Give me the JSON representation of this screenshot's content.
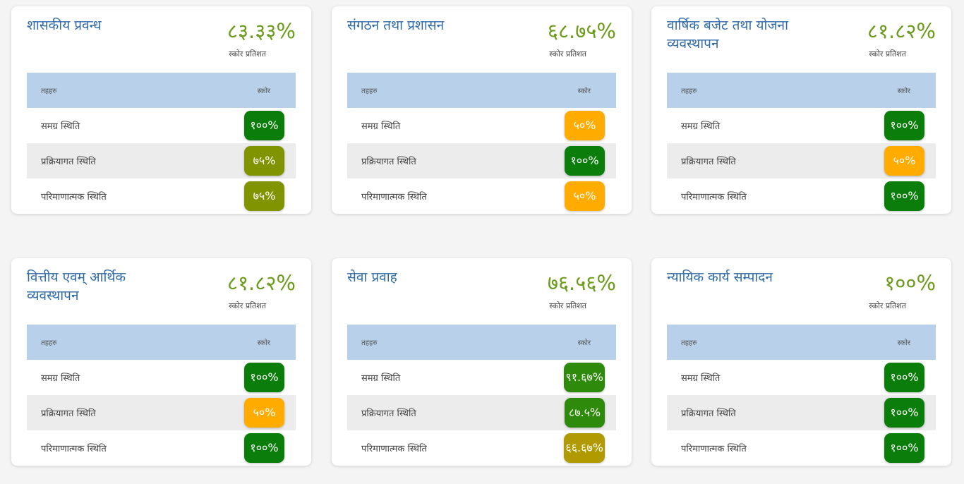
{
  "labels": {
    "subtitle": "स्कोर प्रतिशत",
    "col_tier": "तहहरु",
    "col_score": "स्कोर",
    "row1": "समग्र स्थिति",
    "row2": "प्रक्रियागत स्थिति",
    "row3": "परिमाणात्मक स्थिति"
  },
  "colors": {
    "dark_green": "#0a7d0a",
    "green": "#2e8a0a",
    "olive": "#7f9400",
    "orange": "#ffab00",
    "mustard": "#b09a00"
  },
  "cards": [
    {
      "title": "शासकीय प्रवन्ध",
      "score": "८३.३३%",
      "rows": [
        {
          "value": "१००%",
          "color": "#0a7d0a"
        },
        {
          "value": "७५%",
          "color": "#7f9400"
        },
        {
          "value": "७५%",
          "color": "#7f9400"
        }
      ]
    },
    {
      "title": "संगठन तथा प्रशासन",
      "score": "६८.७५%",
      "rows": [
        {
          "value": "५०%",
          "color": "#ffab00"
        },
        {
          "value": "१००%",
          "color": "#0a7d0a"
        },
        {
          "value": "५०%",
          "color": "#ffab00"
        }
      ]
    },
    {
      "title": "वार्षिक बजेट तथा योजना व्यवस्थापन",
      "score": "८१.८२%",
      "rows": [
        {
          "value": "१००%",
          "color": "#0a7d0a"
        },
        {
          "value": "५०%",
          "color": "#ffab00"
        },
        {
          "value": "१००%",
          "color": "#0a7d0a"
        }
      ]
    },
    {
      "title": "वित्तीय एवम् आर्थिक व्यवस्थापन",
      "score": "८१.८२%",
      "rows": [
        {
          "value": "१००%",
          "color": "#0a7d0a"
        },
        {
          "value": "५०%",
          "color": "#ffab00"
        },
        {
          "value": "१००%",
          "color": "#0a7d0a"
        }
      ]
    },
    {
      "title": "सेवा प्रवाह",
      "score": "७६.५६%",
      "rows": [
        {
          "value": "९१.६७%",
          "color": "#2e8a0a"
        },
        {
          "value": "८७.५%",
          "color": "#2e8a0a"
        },
        {
          "value": "६६.६७%",
          "color": "#b09a00"
        }
      ]
    },
    {
      "title": "न्यायिक कार्य सम्पादन",
      "score": "१००%",
      "rows": [
        {
          "value": "१००%",
          "color": "#0a7d0a"
        },
        {
          "value": "१००%",
          "color": "#0a7d0a"
        },
        {
          "value": "१००%",
          "color": "#0a7d0a"
        }
      ]
    }
  ]
}
